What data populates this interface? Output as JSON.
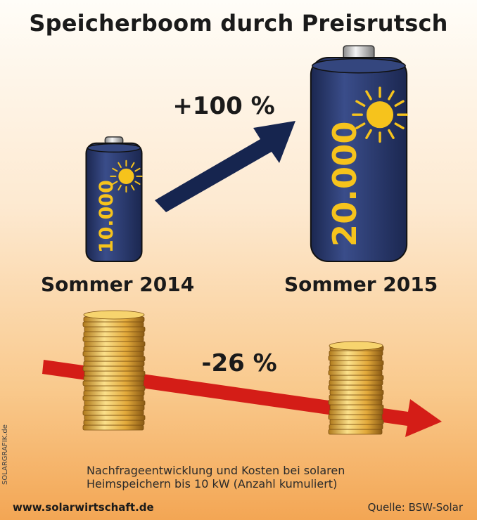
{
  "chart_data": {
    "type": "bar",
    "title": "Speicherboom durch Preisrutsch",
    "categories": [
      "Sommer 2014",
      "Sommer 2015"
    ],
    "series": [
      {
        "values": [
          10000,
          20000
        ],
        "value_labels": [
          "10.000",
          "20.000"
        ],
        "change_label": "+100 %"
      },
      {
        "change_label": "-26 %"
      }
    ],
    "caption": "Nachfrageentwicklung und Kosten bei solaren Heimspeichern bis 10 kW (Anzahl kumuliert)",
    "source": "Quelle: BSW-Solar",
    "website": "www.solarwirtschaft.de",
    "credit": "SOLARGRAFIK.de"
  },
  "colors": {
    "battery": "#2a3a6e",
    "battery_dark": "#1b2750",
    "sun": "#f6c31c",
    "arrow_up": "#16254f",
    "arrow_down": "#d41d17",
    "coin": "#e8b44a"
  }
}
